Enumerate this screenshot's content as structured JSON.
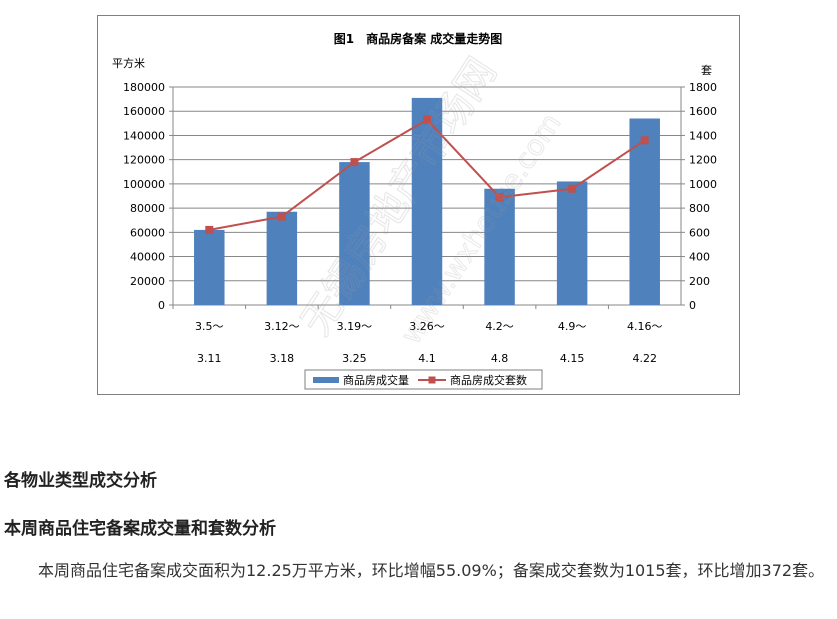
{
  "chart_data": {
    "type": "bar",
    "title": "图1　商品房备案 成交量走势图",
    "ylabel_left": "平方米",
    "ylabel_right": "套",
    "categories": [
      [
        "3.5～",
        "3.11"
      ],
      [
        "3.12～",
        "3.18"
      ],
      [
        "3.19～",
        "3.25"
      ],
      [
        "3.26～",
        "4.1"
      ],
      [
        "4.2～",
        "4.8"
      ],
      [
        "4.9～",
        "4.15"
      ],
      [
        "4.16～",
        "4.22"
      ]
    ],
    "ylim_left": [
      0,
      180000
    ],
    "yticks_left": [
      0,
      20000,
      40000,
      60000,
      80000,
      100000,
      120000,
      140000,
      160000,
      180000
    ],
    "ylim_right": [
      0,
      1800
    ],
    "yticks_right": [
      0,
      200,
      400,
      600,
      800,
      1000,
      1200,
      1400,
      1600,
      1800
    ],
    "grid": true,
    "legend_position": "bottom",
    "series": [
      {
        "name": "商品房成交量",
        "type": "bar",
        "axis": "left",
        "color": "#4f81bd",
        "values": [
          62000,
          77000,
          118000,
          171000,
          96000,
          102000,
          154000
        ]
      },
      {
        "name": "商品房成交套数",
        "type": "line",
        "axis": "right",
        "color": "#c0504d",
        "values": [
          620,
          730,
          1180,
          1530,
          890,
          960,
          1360
        ]
      }
    ]
  },
  "watermark": {
    "text": "无锡房地产市场网",
    "url": "www.wxhouse.com"
  },
  "article": {
    "heading1": "各物业类型成交分析",
    "heading2": "本周商品住宅备案成交量和套数分析",
    "paragraph": "本周商品住宅备案成交面积为12.25万平方米，环比增幅55.09%；备案成交套数为1015套，环比增加372套。"
  }
}
